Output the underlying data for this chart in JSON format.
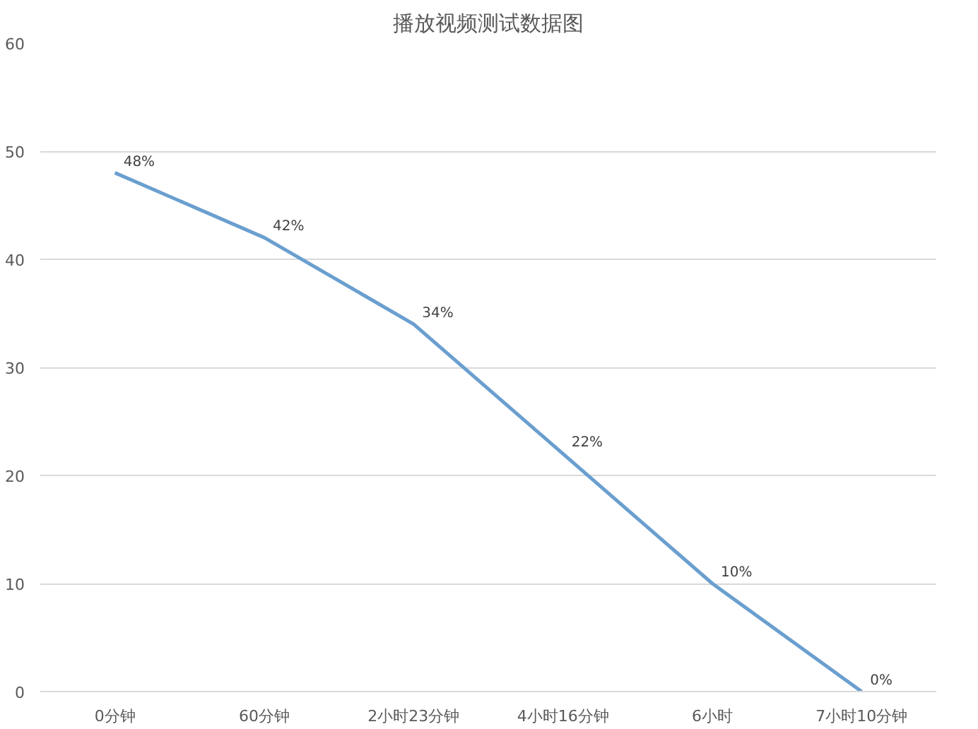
{
  "chart_data": {
    "type": "line",
    "title": "播放视频测试数据图",
    "categories": [
      "0分钟",
      "60分钟",
      "2小时23分钟",
      "4小时16分钟",
      "6小时",
      "7小时10分钟"
    ],
    "series": [
      {
        "color": "#6a9fcf",
        "values": [
          48,
          42,
          34,
          22,
          10,
          0
        ],
        "value_labels": [
          "48%",
          "42%",
          "34%",
          "22%",
          "10%",
          "0%"
        ]
      }
    ],
    "ylim": [
      0,
      60
    ],
    "yticks": [
      0,
      10,
      20,
      30,
      40,
      50,
      60
    ],
    "grid": "y",
    "marker": "none",
    "line_style": "solid"
  }
}
